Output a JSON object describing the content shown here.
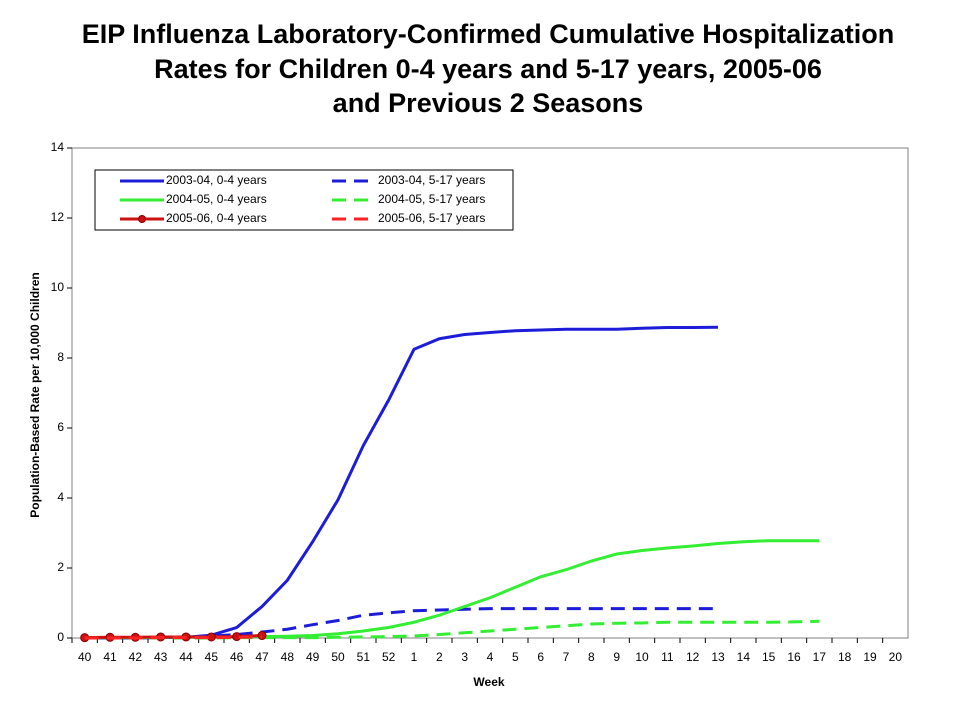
{
  "chart_data": {
    "type": "line",
    "title": [
      "EIP Influenza Laboratory-Confirmed Cumulative Hospitalization",
      "Rates for Children 0-4 years and 5-17 years, 2005-06",
      "and Previous 2 Seasons"
    ],
    "xlabel": "Week",
    "ylabel": "Population-Based Rate per 10,000 Children",
    "categories": [
      "40",
      "41",
      "42",
      "43",
      "44",
      "45",
      "46",
      "47",
      "48",
      "49",
      "50",
      "51",
      "52",
      "1",
      "2",
      "3",
      "4",
      "5",
      "6",
      "7",
      "8",
      "9",
      "10",
      "11",
      "12",
      "13",
      "14",
      "15",
      "16",
      "17",
      "18",
      "19",
      "20"
    ],
    "ylim": [
      0,
      14
    ],
    "yticks": [
      0,
      2,
      4,
      6,
      8,
      10,
      12,
      14
    ],
    "grid": false,
    "series": [
      {
        "name": "2003-04, 0-4 years",
        "color": "#1c1cd9",
        "style": "solid",
        "marker": false,
        "values": [
          0,
          0,
          0,
          0.01,
          0.02,
          0.08,
          0.3,
          0.9,
          1.65,
          2.75,
          3.95,
          5.5,
          6.8,
          8.25,
          8.55,
          8.67,
          8.73,
          8.78,
          8.8,
          8.82,
          8.82,
          8.82,
          8.85,
          8.87,
          8.87,
          8.88,
          null,
          null,
          null,
          null,
          null,
          null,
          null
        ]
      },
      {
        "name": "2003-04, 5-17 years",
        "color": "#1c1cd9",
        "style": "dashed",
        "marker": false,
        "values": [
          0,
          0.01,
          0.01,
          0.02,
          0.03,
          0.05,
          0.1,
          0.17,
          0.25,
          0.38,
          0.5,
          0.65,
          0.72,
          0.78,
          0.8,
          0.82,
          0.84,
          0.84,
          0.84,
          0.84,
          0.84,
          0.84,
          0.84,
          0.84,
          0.84,
          0.84,
          null,
          null,
          null,
          null,
          null,
          null,
          null
        ]
      },
      {
        "name": "2004-05, 0-4 years",
        "color": "#33ee33",
        "style": "solid",
        "marker": false,
        "values": [
          0.01,
          0.01,
          0.01,
          0.02,
          0.02,
          0.03,
          0.03,
          0.04,
          0.05,
          0.07,
          0.12,
          0.2,
          0.3,
          0.45,
          0.65,
          0.9,
          1.15,
          1.45,
          1.75,
          1.95,
          2.2,
          2.4,
          2.5,
          2.57,
          2.63,
          2.7,
          2.75,
          2.78,
          2.78,
          2.78,
          null,
          null,
          null
        ]
      },
      {
        "name": "2004-05, 5-17 years",
        "color": "#33ee33",
        "style": "dashed",
        "marker": false,
        "values": [
          0,
          0,
          0,
          0,
          0,
          0,
          0.01,
          0.01,
          0.01,
          0.01,
          0.02,
          0.03,
          0.04,
          0.06,
          0.1,
          0.15,
          0.2,
          0.25,
          0.3,
          0.35,
          0.4,
          0.42,
          0.43,
          0.45,
          0.45,
          0.45,
          0.45,
          0.45,
          0.46,
          0.48,
          null,
          null,
          null
        ]
      },
      {
        "name": "2005-06, 0-4 years",
        "color": "#cc1111",
        "style": "solid",
        "marker": true,
        "values": [
          0.01,
          0.02,
          0.02,
          0.03,
          0.03,
          0.03,
          0.04,
          0.07,
          null,
          null,
          null,
          null,
          null,
          null,
          null,
          null,
          null,
          null,
          null,
          null,
          null,
          null,
          null,
          null,
          null,
          null,
          null,
          null,
          null,
          null,
          null,
          null,
          null
        ]
      },
      {
        "name": "2005-06, 5-17 years",
        "color": "#ff2222",
        "style": "dashed",
        "marker": false,
        "values": [
          0,
          0,
          0,
          0.01,
          0.01,
          0.01,
          0.02,
          0.03,
          null,
          null,
          null,
          null,
          null,
          null,
          null,
          null,
          null,
          null,
          null,
          null,
          null,
          null,
          null,
          null,
          null,
          null,
          null,
          null,
          null,
          null,
          null,
          null,
          null
        ]
      }
    ]
  }
}
